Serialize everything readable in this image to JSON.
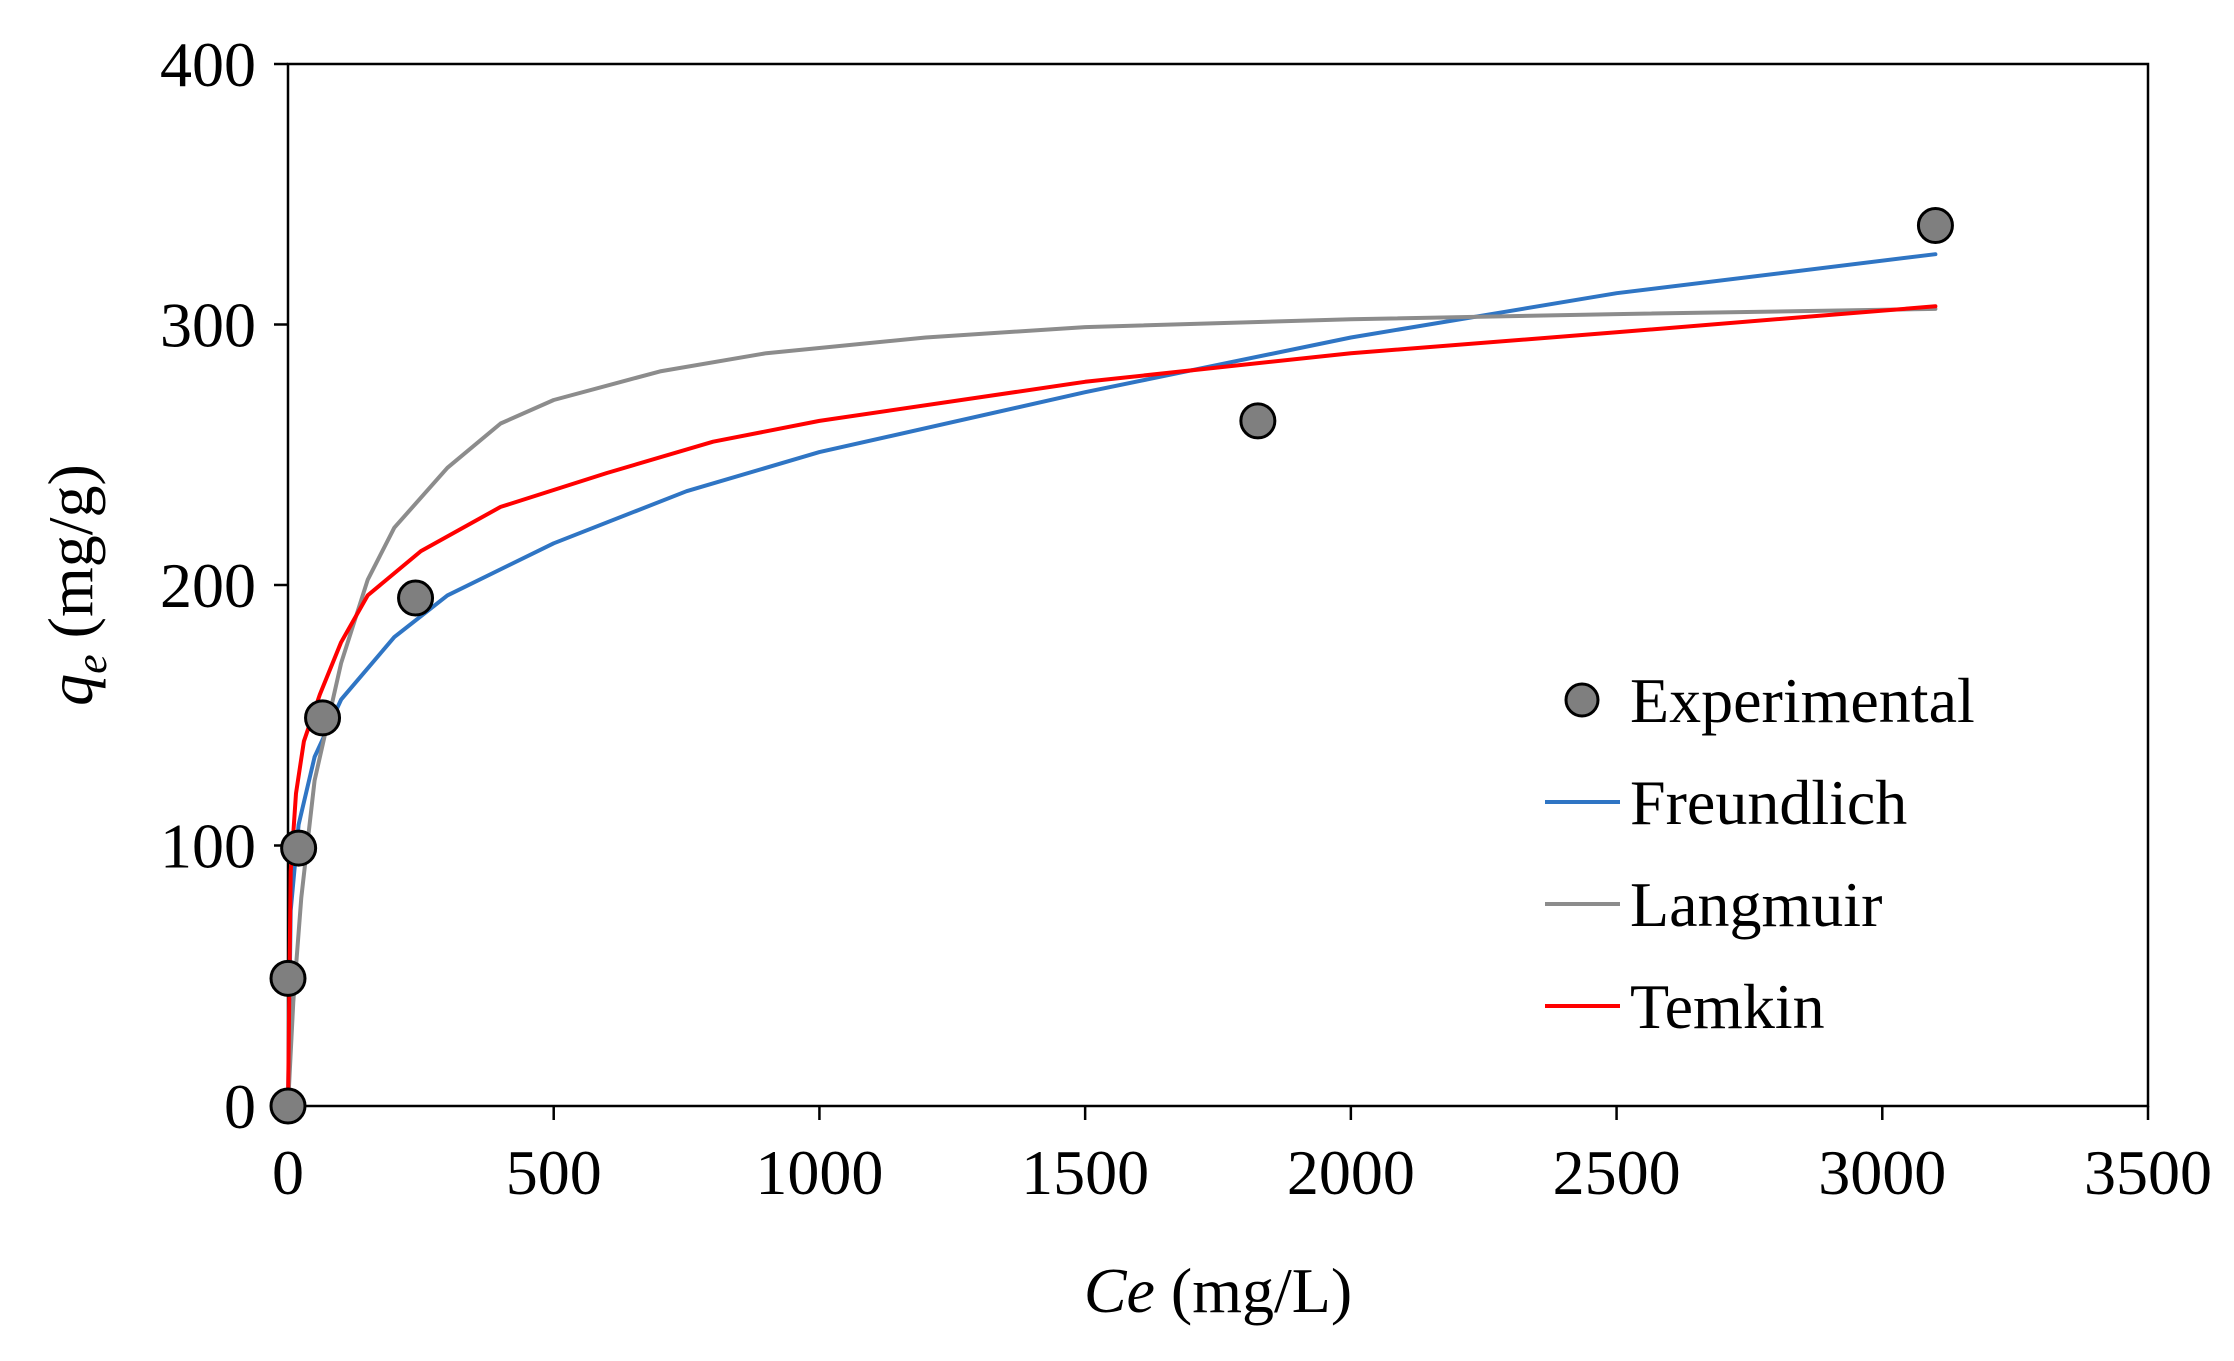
{
  "chart_data": {
    "type": "scatter",
    "title": "",
    "xlabel": {
      "italic": "Ce",
      "rest": " (mg/L)"
    },
    "ylabel": {
      "italic": "q",
      "sub": "e",
      "rest": " (mg/g)"
    },
    "xlim": [
      0,
      3500
    ],
    "ylim": [
      0,
      400
    ],
    "xticks": [
      "0",
      "500",
      "1000",
      "1500",
      "2000",
      "2500",
      "3000",
      "3500"
    ],
    "yticks": [
      "0",
      "100",
      "200",
      "300",
      "400"
    ],
    "grid": false,
    "legend_position": "right-middle",
    "series": [
      {
        "name": "Experimental",
        "kind": "marker",
        "color": "#7f7f7f",
        "points": [
          [
            0,
            0
          ],
          [
            0,
            49
          ],
          [
            20,
            99
          ],
          [
            65,
            149
          ],
          [
            240,
            195
          ],
          [
            1825,
            263
          ],
          [
            3100,
            338
          ]
        ]
      },
      {
        "name": "Freundlich",
        "kind": "line",
        "color": "#2f75c4",
        "points": [
          [
            0,
            0
          ],
          [
            5,
            75
          ],
          [
            20,
            108
          ],
          [
            50,
            134
          ],
          [
            100,
            156
          ],
          [
            200,
            180
          ],
          [
            300,
            196
          ],
          [
            500,
            216
          ],
          [
            750,
            236
          ],
          [
            1000,
            251
          ],
          [
            1500,
            274
          ],
          [
            2000,
            295
          ],
          [
            2500,
            312
          ],
          [
            3100,
            327
          ]
        ]
      },
      {
        "name": "Langmuir",
        "kind": "line",
        "color": "#8c8c8c",
        "points": [
          [
            0,
            0
          ],
          [
            10,
            40
          ],
          [
            25,
            80
          ],
          [
            50,
            125
          ],
          [
            100,
            170
          ],
          [
            150,
            202
          ],
          [
            200,
            222
          ],
          [
            300,
            245
          ],
          [
            400,
            262
          ],
          [
            500,
            271
          ],
          [
            700,
            282
          ],
          [
            900,
            289
          ],
          [
            1200,
            295
          ],
          [
            1500,
            299
          ],
          [
            2000,
            302
          ],
          [
            2500,
            304
          ],
          [
            3100,
            306
          ]
        ]
      },
      {
        "name": "Temkin",
        "kind": "line",
        "color": "#ff0000",
        "points": [
          [
            0,
            0
          ],
          [
            5,
            90
          ],
          [
            15,
            120
          ],
          [
            30,
            140
          ],
          [
            60,
            158
          ],
          [
            100,
            178
          ],
          [
            150,
            196
          ],
          [
            250,
            213
          ],
          [
            400,
            230
          ],
          [
            600,
            243
          ],
          [
            800,
            255
          ],
          [
            1000,
            263
          ],
          [
            1500,
            278
          ],
          [
            2000,
            289
          ],
          [
            2500,
            297
          ],
          [
            3100,
            307
          ]
        ]
      }
    ]
  }
}
